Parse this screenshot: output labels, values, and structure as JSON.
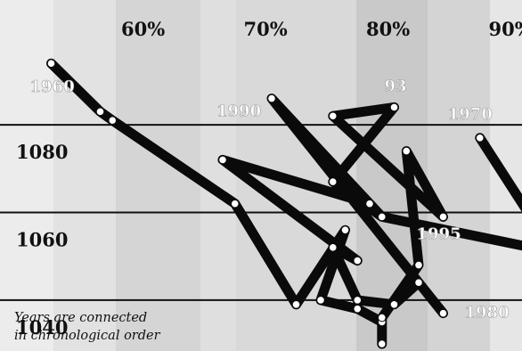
{
  "chart_data": {
    "type": "line",
    "xlabel": "",
    "ylabel": "",
    "xlim": [
      50.5,
      94.5
    ],
    "ylim": [
      1029,
      1098
    ],
    "x_ticks": [
      {
        "value": 60,
        "label": "60%"
      },
      {
        "value": 70,
        "label": "70%"
      },
      {
        "value": 80,
        "label": "80%"
      },
      {
        "value": 90,
        "label": "90%"
      }
    ],
    "y_ticks": [
      {
        "value": 1080,
        "label": "1080"
      },
      {
        "value": 1060,
        "label": "1060"
      },
      {
        "value": 1040,
        "label": "1040"
      }
    ],
    "series": [
      {
        "points": [
          {
            "x": 52.5,
            "y": 1094
          },
          {
            "x": 56.5,
            "y": 1083
          },
          {
            "x": 57.5,
            "y": 1081
          },
          {
            "x": 67.5,
            "y": 1062
          },
          {
            "x": 72.5,
            "y": 1039
          },
          {
            "x": 76.5,
            "y": 1056
          },
          {
            "x": 74.5,
            "y": 1040
          },
          {
            "x": 77.5,
            "y": 1038
          },
          {
            "x": 79.5,
            "y": 1035
          },
          {
            "x": 79.5,
            "y": 1030
          },
          {
            "x": 79.5,
            "y": 1036
          },
          {
            "x": 82.5,
            "y": 1048
          },
          {
            "x": 81.5,
            "y": 1074
          },
          {
            "x": 84.5,
            "y": 1059
          },
          {
            "x": 75.5,
            "y": 1082
          },
          {
            "x": 80.5,
            "y": 1084
          },
          {
            "x": 75.5,
            "y": 1067
          },
          {
            "x": 79.5,
            "y": 1059
          },
          {
            "x": 78.5,
            "y": 1062
          },
          {
            "x": 66.5,
            "y": 1072
          },
          {
            "x": 77.5,
            "y": 1049
          },
          {
            "x": 75.5,
            "y": 1052
          },
          {
            "x": 77.5,
            "y": 1040
          },
          {
            "x": 80.5,
            "y": 1039
          },
          {
            "x": 82.5,
            "y": 1044
          },
          {
            "x": 84.5,
            "y": 1037
          },
          {
            "x": 70.5,
            "y": 1086
          },
          {
            "x": 79.5,
            "y": 1059
          },
          {
            "x": 93.5,
            "y": 1051
          },
          {
            "x": 87.5,
            "y": 1077
          }
        ]
      }
    ],
    "point_labels": [
      {
        "text": "1960",
        "index": 0,
        "dx": -24,
        "dy": 32
      },
      {
        "text": "1970",
        "index": 29,
        "dx": -36,
        "dy": -21
      },
      {
        "text": "1980",
        "index": 25,
        "dx": 24,
        "dy": 5
      },
      {
        "text": "1990",
        "index": 26,
        "dx": -62,
        "dy": 20
      },
      {
        "text": "93",
        "index": 15,
        "dx": -11,
        "dy": -18
      },
      {
        "text": "1995",
        "index": 13,
        "dx": -30,
        "dy": 25
      }
    ]
  },
  "annotation": {
    "line1": "Years are connected",
    "line2": "in chronological order"
  }
}
